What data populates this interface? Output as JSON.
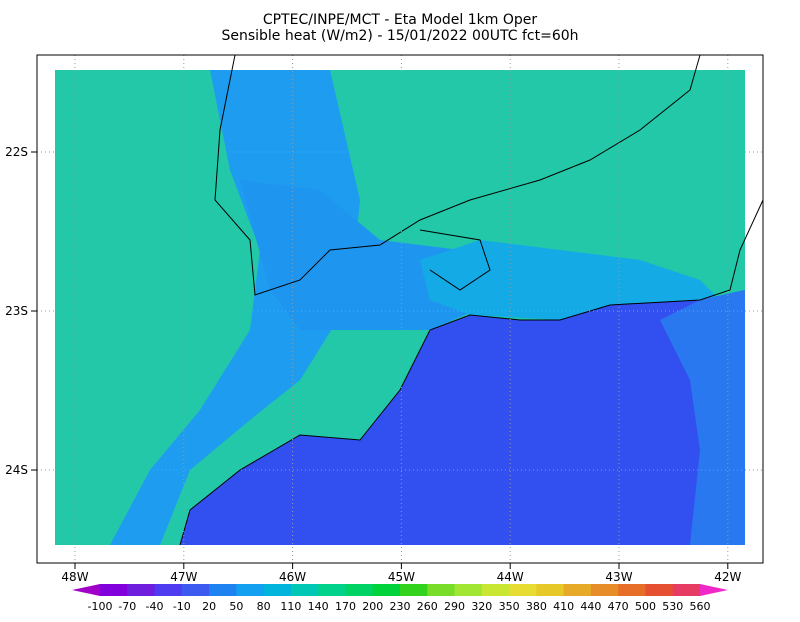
{
  "header": {
    "title": "CPTEC/INPE/MCT -   Eta Model 1km Oper",
    "subtitle": "Sensible heat (W/m2) - 15/01/2022 00UTC fct=60h"
  },
  "map": {
    "lat_labels": [
      "22S",
      "23S",
      "24S"
    ],
    "lon_labels": [
      "48W",
      "47W",
      "46W",
      "45W",
      "44W",
      "43W",
      "42W"
    ]
  },
  "colorbar": {
    "labels": [
      -100,
      -70,
      -40,
      -10,
      20,
      50,
      80,
      110,
      140,
      170,
      200,
      230,
      260,
      290,
      320,
      350,
      380,
      410,
      440,
      470,
      500,
      530,
      560
    ],
    "colors": [
      "#a000c8",
      "#8200dc",
      "#6e1edc",
      "#503cf0",
      "#3c5af0",
      "#1e82f0",
      "#14a0f0",
      "#00b4dc",
      "#00c8b4",
      "#00d28c",
      "#00d264",
      "#00d23c",
      "#32d21e",
      "#78dc28",
      "#a0e632",
      "#c8e632",
      "#e6dc32",
      "#e6c828",
      "#e6aa28",
      "#e68c28",
      "#e66e28",
      "#e65032",
      "#e63c64",
      "#f028c8"
    ]
  }
}
